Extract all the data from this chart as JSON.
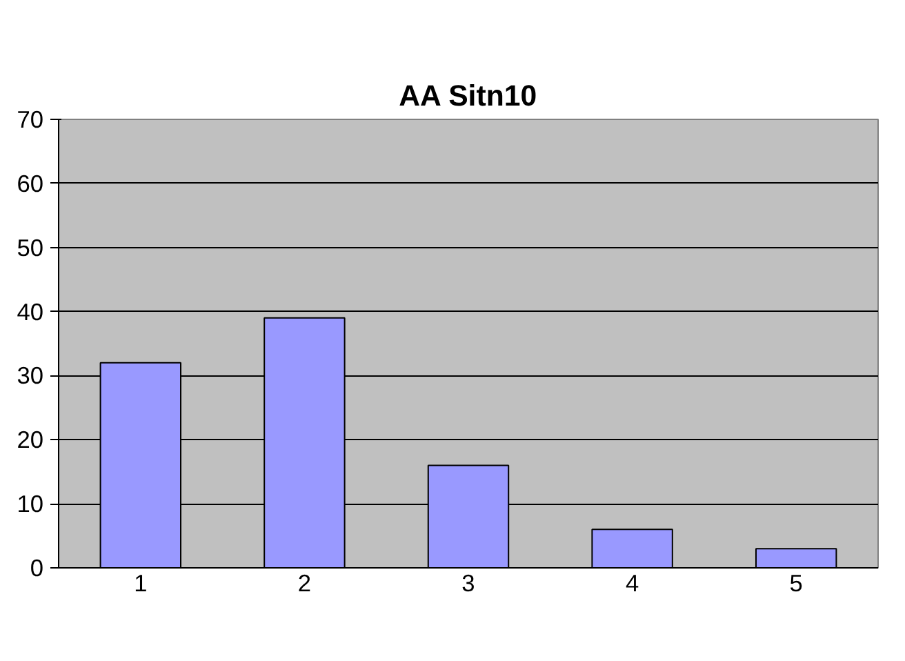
{
  "chart_data": {
    "type": "bar",
    "title": "AA Sitn10",
    "categories": [
      "1",
      "2",
      "3",
      "4",
      "5"
    ],
    "values": [
      32,
      39,
      16,
      6,
      3
    ],
    "color": "#9999ff",
    "ylim": [
      0,
      70
    ],
    "yticks": [
      0,
      10,
      20,
      30,
      40,
      50,
      60,
      70
    ],
    "grid": "y"
  }
}
